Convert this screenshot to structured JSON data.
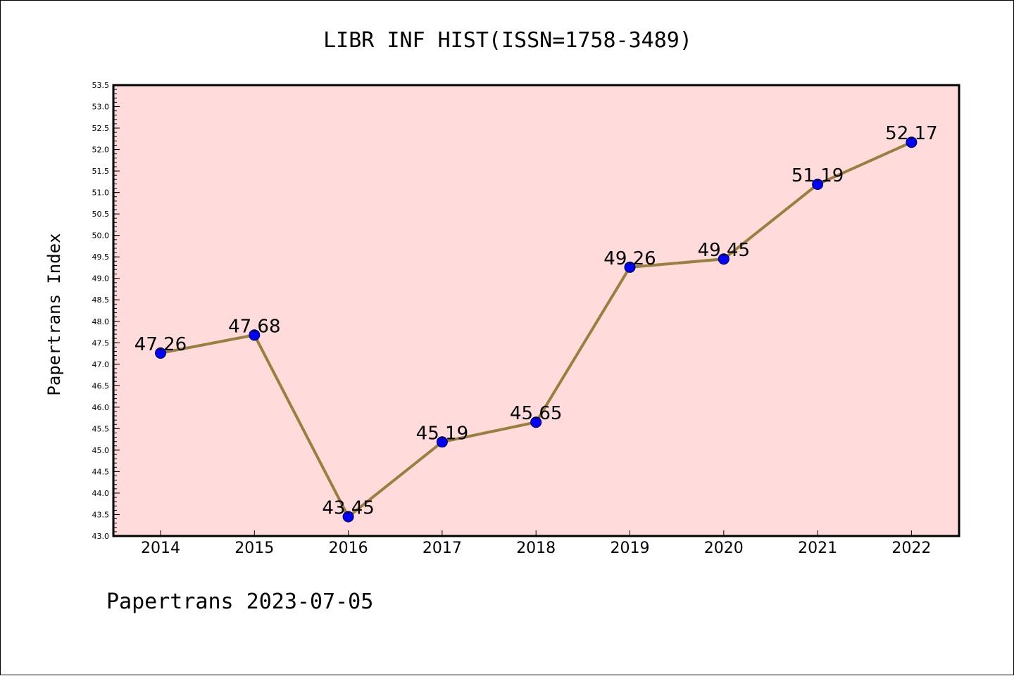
{
  "chart_data": {
    "type": "line",
    "title": "LIBR INF HIST(ISSN=1758-3489)",
    "ylabel": "Papertrans Index",
    "xlabel": "",
    "categories": [
      "2014",
      "2015",
      "2016",
      "2017",
      "2018",
      "2019",
      "2020",
      "2021",
      "2022"
    ],
    "values": [
      47.26,
      47.68,
      43.45,
      45.19,
      45.65,
      49.26,
      49.45,
      51.19,
      52.17
    ],
    "data_labels": [
      "47.26",
      "47.68",
      "43.45",
      "45.19",
      "45.65",
      "49.26",
      "49.45",
      "51.19",
      "52.17"
    ],
    "ylim": [
      43.0,
      53.5
    ],
    "ytick_labels": [
      "43.0",
      "43.5",
      "44.0",
      "44.5",
      "45.0",
      "45.5",
      "46.0",
      "46.5",
      "47.0",
      "47.5",
      "48.0",
      "48.5",
      "49.0",
      "49.5",
      "50.0",
      "50.5",
      "51.0",
      "51.5",
      "52.0",
      "52.5",
      "53.0",
      "53.5"
    ],
    "grid": false,
    "legend": "none",
    "colors": {
      "plot_background": "#ffdcdb",
      "line": "#9a7f3e",
      "marker": "#0000ff"
    }
  },
  "footer": "Papertrans 2023-07-05"
}
